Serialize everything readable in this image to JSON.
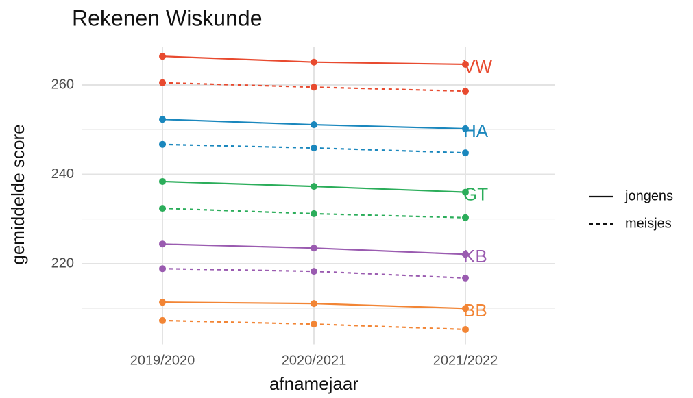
{
  "chart_data": {
    "type": "line",
    "title": "Rekenen Wiskunde",
    "x_label": "afnamejaar",
    "y_label": "gemiddelde score",
    "categories": [
      "2019/2020",
      "2020/2021",
      "2021/2022"
    ],
    "ylim": [
      202,
      268.5
    ],
    "yticks": [
      220,
      240,
      260
    ],
    "minor_yticks": [
      210,
      230,
      250
    ],
    "grid": true,
    "legend": [
      {
        "label": "jongens",
        "dash": "solid"
      },
      {
        "label": "meisjes",
        "dash": "dashed"
      }
    ],
    "groups": [
      {
        "label": "VW",
        "color": "#e84a2f",
        "jongens": [
          266.4,
          265.1,
          264.6
        ],
        "meisjes": [
          260.5,
          259.5,
          258.6
        ]
      },
      {
        "label": "HA",
        "color": "#1a87bd",
        "jongens": [
          252.3,
          251.1,
          250.2
        ],
        "meisjes": [
          246.7,
          245.9,
          244.8
        ]
      },
      {
        "label": "GT",
        "color": "#2bad5a",
        "jongens": [
          238.4,
          237.3,
          236.0
        ],
        "meisjes": [
          232.4,
          231.2,
          230.3
        ]
      },
      {
        "label": "KB",
        "color": "#9a5bb0",
        "jongens": [
          224.4,
          223.5,
          222.1
        ],
        "meisjes": [
          218.9,
          218.3,
          216.8
        ]
      },
      {
        "label": "BB",
        "color": "#f28535",
        "jongens": [
          211.4,
          211.1,
          210.0
        ],
        "meisjes": [
          207.3,
          206.5,
          205.3
        ]
      }
    ]
  }
}
